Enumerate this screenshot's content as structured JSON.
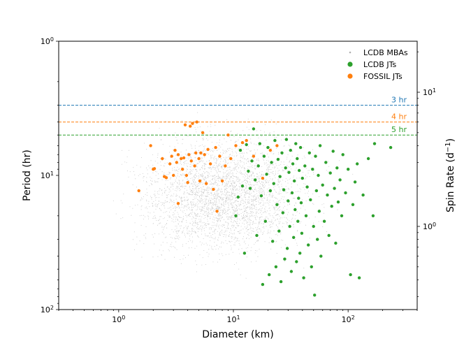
{
  "chart_data": {
    "type": "scatter",
    "title": "",
    "xlabel": "Diameter (km)",
    "ylabel": "Period (hr)",
    "ylabel_right": "Spin Rate (d",
    "ylabel_right_sup": "−1",
    "ylabel_right_close": ")",
    "x_scale": "log",
    "y_scale": "log",
    "y_inverted": true,
    "xlim": [
      0.3,
      400
    ],
    "ylim": [
      1,
      100
    ],
    "x_ticks": [
      {
        "value": 1,
        "label": "10",
        "sup": "0"
      },
      {
        "value": 10,
        "label": "10",
        "sup": "1"
      },
      {
        "value": 100,
        "label": "10",
        "sup": "2"
      }
    ],
    "y_ticks": [
      {
        "value": 1,
        "label": "10",
        "sup": "0"
      },
      {
        "value": 10,
        "label": "10",
        "sup": "1"
      },
      {
        "value": 100,
        "label": "10",
        "sup": "2"
      }
    ],
    "y2_ticks": [
      {
        "value": 10,
        "label": "10",
        "sup": "1"
      },
      {
        "value": 1,
        "label": "10",
        "sup": "0"
      }
    ],
    "legend": {
      "placement": "top-right",
      "entries": [
        {
          "label": "LCDB MBAs",
          "color": "#c8c8c8",
          "marker": "small"
        },
        {
          "label": "LCDB JTs",
          "color": "#2ca02c",
          "marker": "large"
        },
        {
          "label": "FOSSIL JTs",
          "color": "#ff7f0e",
          "marker": "large"
        }
      ]
    },
    "hlines": [
      {
        "y": 3,
        "label": "3 hr",
        "color": "#1f77b4"
      },
      {
        "y": 4,
        "label": "4 hr",
        "color": "#ff7f0e"
      },
      {
        "y": 5,
        "label": "5 hr",
        "color": "#2ca02c"
      }
    ],
    "series": [
      {
        "name": "FOSSIL JTs",
        "color": "#ff7f0e",
        "points": [
          [
            1.5,
            13
          ],
          [
            1.9,
            6.0
          ],
          [
            2.0,
            9.0
          ],
          [
            2.05,
            8.9
          ],
          [
            2.4,
            7.5
          ],
          [
            2.5,
            10.2
          ],
          [
            2.6,
            10.4
          ],
          [
            2.8,
            8.2
          ],
          [
            2.9,
            7.2
          ],
          [
            3.0,
            10.0
          ],
          [
            3.1,
            6.5
          ],
          [
            3.2,
            8.0
          ],
          [
            3.3,
            7.0
          ],
          [
            3.3,
            16.2
          ],
          [
            3.5,
            7.5
          ],
          [
            3.6,
            9.0
          ],
          [
            3.7,
            7.4
          ],
          [
            3.8,
            4.2
          ],
          [
            3.9,
            10.0
          ],
          [
            4.0,
            11.3
          ],
          [
            4.1,
            7.0
          ],
          [
            4.2,
            4.3
          ],
          [
            4.3,
            7.8
          ],
          [
            4.4,
            4.1
          ],
          [
            4.6,
            8.5
          ],
          [
            4.7,
            6.8
          ],
          [
            4.8,
            4.0
          ],
          [
            5.0,
            7.5
          ],
          [
            5.1,
            11.0
          ],
          [
            5.2,
            6.8
          ],
          [
            5.4,
            4.8
          ],
          [
            5.6,
            7.0
          ],
          [
            5.8,
            11.5
          ],
          [
            6.0,
            6.4
          ],
          [
            6.3,
            8.2
          ],
          [
            6.7,
            12.7
          ],
          [
            7.0,
            6.2
          ],
          [
            7.2,
            18.5
          ],
          [
            7.6,
            7.2
          ],
          [
            8.0,
            11.0
          ],
          [
            8.5,
            8.5
          ],
          [
            9.0,
            5.0
          ],
          [
            9.5,
            7.5
          ],
          [
            10.5,
            6.0
          ],
          [
            12.0,
            5.7
          ],
          [
            13.0,
            5.5
          ],
          [
            15.0,
            7.2
          ],
          [
            18.0,
            10.5
          ],
          [
            21.0,
            6.5
          ],
          [
            24.0,
            6.0
          ]
        ]
      },
      {
        "name": "LCDB JTs",
        "color": "#2ca02c",
        "points": [
          [
            10.5,
            20
          ],
          [
            11.0,
            14.5
          ],
          [
            11.5,
            6.5
          ],
          [
            12.0,
            12.0
          ],
          [
            12.5,
            38
          ],
          [
            13.0,
            5.9
          ],
          [
            13.5,
            9.3
          ],
          [
            14.0,
            12.5
          ],
          [
            14.5,
            7.8
          ],
          [
            15.0,
            4.5
          ],
          [
            15.5,
            10.8
          ],
          [
            16.0,
            28
          ],
          [
            16.5,
            8.5
          ],
          [
            17.0,
            5.8
          ],
          [
            17.5,
            14.2
          ],
          [
            18.0,
            65
          ],
          [
            18.5,
            7.2
          ],
          [
            19.0,
            22
          ],
          [
            19.5,
            9.8
          ],
          [
            20.0,
            6.2
          ],
          [
            20.5,
            55
          ],
          [
            21.0,
            13.0
          ],
          [
            21.5,
            8.0
          ],
          [
            22.0,
            31
          ],
          [
            22.5,
            11.5
          ],
          [
            23.0,
            5.5
          ],
          [
            23.5,
            48
          ],
          [
            24.0,
            16.5
          ],
          [
            24.5,
            7.6
          ],
          [
            25.0,
            26
          ],
          [
            25.5,
            10.2
          ],
          [
            26.0,
            62
          ],
          [
            26.5,
            6.8
          ],
          [
            27.0,
            19
          ],
          [
            27.5,
            12.8
          ],
          [
            28.0,
            42
          ],
          [
            28.5,
            8.8
          ],
          [
            29.0,
            5.4
          ],
          [
            29.5,
            35
          ],
          [
            30.0,
            15.5
          ],
          [
            30.5,
            9.5
          ],
          [
            31.0,
            24
          ],
          [
            31.5,
            6.5
          ],
          [
            32.0,
            52
          ],
          [
            32.5,
            13.5
          ],
          [
            33.0,
            8.2
          ],
          [
            33.5,
            29
          ],
          [
            34.0,
            11.0
          ],
          [
            34.5,
            18
          ],
          [
            35.0,
            5.8
          ],
          [
            35.5,
            44
          ],
          [
            36.0,
            7.5
          ],
          [
            36.5,
            22
          ],
          [
            37.0,
            14.8
          ],
          [
            37.5,
            9.2
          ],
          [
            38.0,
            38
          ],
          [
            38.5,
            6.2
          ],
          [
            39.0,
            16.0
          ],
          [
            39.5,
            27
          ],
          [
            40.0,
            10.5
          ],
          [
            41.0,
            58
          ],
          [
            42.0,
            8.5
          ],
          [
            43.0,
            20
          ],
          [
            44.0,
            12.2
          ],
          [
            45.0,
            33
          ],
          [
            46.0,
            6.8
          ],
          [
            47.0,
            15.2
          ],
          [
            48.0,
            48
          ],
          [
            49.0,
            9.0
          ],
          [
            50.0,
            24
          ],
          [
            51.0,
            78
          ],
          [
            52.0,
            7.2
          ],
          [
            53.0,
            13.0
          ],
          [
            54.0,
            30
          ],
          [
            55.0,
            10.0
          ],
          [
            56.0,
            18.5
          ],
          [
            57.0,
            6.0
          ],
          [
            58.0,
            40
          ],
          [
            60.0,
            11.8
          ],
          [
            62.0,
            22
          ],
          [
            64.0,
            8.0
          ],
          [
            66.0,
            14.0
          ],
          [
            68.0,
            28
          ],
          [
            70.0,
            9.6
          ],
          [
            72.0,
            17.0
          ],
          [
            74.0,
            6.6
          ],
          [
            76.0,
            12.5
          ],
          [
            78.0,
            32
          ],
          [
            80.0,
            8.8
          ],
          [
            82.0,
            15.8
          ],
          [
            85.0,
            10.8
          ],
          [
            88.0,
            20
          ],
          [
            90.0,
            7.0
          ],
          [
            95.0,
            13.5
          ],
          [
            100.0,
            9.0
          ],
          [
            105.0,
            55
          ],
          [
            110.0,
            16.5
          ],
          [
            115.0,
            11.2
          ],
          [
            120.0,
            8.2
          ],
          [
            125.0,
            58
          ],
          [
            135.0,
            14.0
          ],
          [
            150.0,
            7.5
          ],
          [
            165.0,
            20
          ],
          [
            170.0,
            5.8
          ],
          [
            235.0,
            6.2
          ]
        ]
      }
    ],
    "background_cloud": {
      "name": "LCDB MBAs",
      "color": "#c8c8c8",
      "x_range": [
        0.35,
        200
      ],
      "y_range": [
        1.7,
        120
      ],
      "count": 3500
    }
  }
}
